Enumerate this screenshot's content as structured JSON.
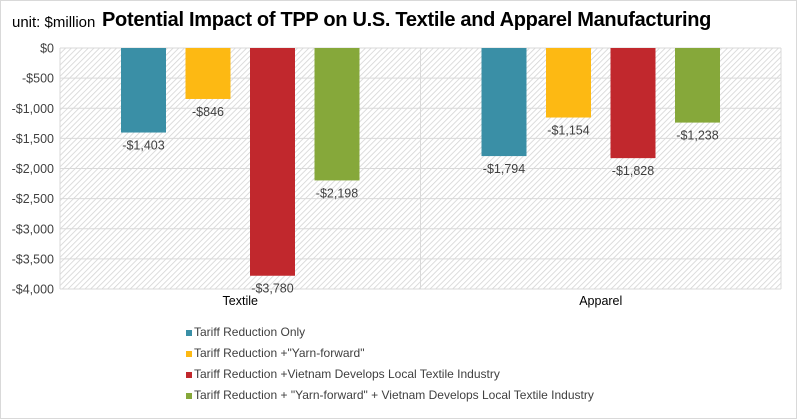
{
  "chart_data": {
    "type": "bar",
    "title": "Potential Impact of TPP on U.S.  Textile and Apparel Manufacturing",
    "unit_label": "unit: $million",
    "xlabel": "",
    "ylabel": "",
    "categories": [
      "Textile",
      "Apparel"
    ],
    "ylim": [
      -4000,
      0
    ],
    "yticks": [
      0,
      -500,
      -1000,
      -1500,
      -2000,
      -2500,
      -3000,
      -3500,
      -4000
    ],
    "ytick_labels": [
      "$0",
      "-$500",
      "-$1,000",
      "-$1,500",
      "-$2,000",
      "-$2,500",
      "-$3,000",
      "-$3,500",
      "-$4,000"
    ],
    "grid": true,
    "legend_position": "bottom",
    "series": [
      {
        "name": "Tariff Reduction Only",
        "color": "#3a8fa6",
        "values": [
          -1403,
          -1794
        ],
        "labels": [
          "-$1,403",
          "-$1,794"
        ]
      },
      {
        "name": "Tariff Reduction +\"Yarn-forward\"",
        "color": "#fdb913",
        "values": [
          -846,
          -1154
        ],
        "labels": [
          "-$846",
          "-$1,154"
        ]
      },
      {
        "name": "Tariff Reduction +Vietnam Develops Local Textile Industry",
        "color": "#c1282d",
        "values": [
          -3780,
          -1828
        ],
        "labels": [
          "-$3,780",
          "-$1,828"
        ]
      },
      {
        "name": "Tariff Reduction + \"Yarn-forward\" + Vietnam Develops Local Textile Industry",
        "color": "#86a83a",
        "values": [
          -2198,
          -1238
        ],
        "labels": [
          "-$2,198",
          "-$1,238"
        ]
      }
    ]
  }
}
